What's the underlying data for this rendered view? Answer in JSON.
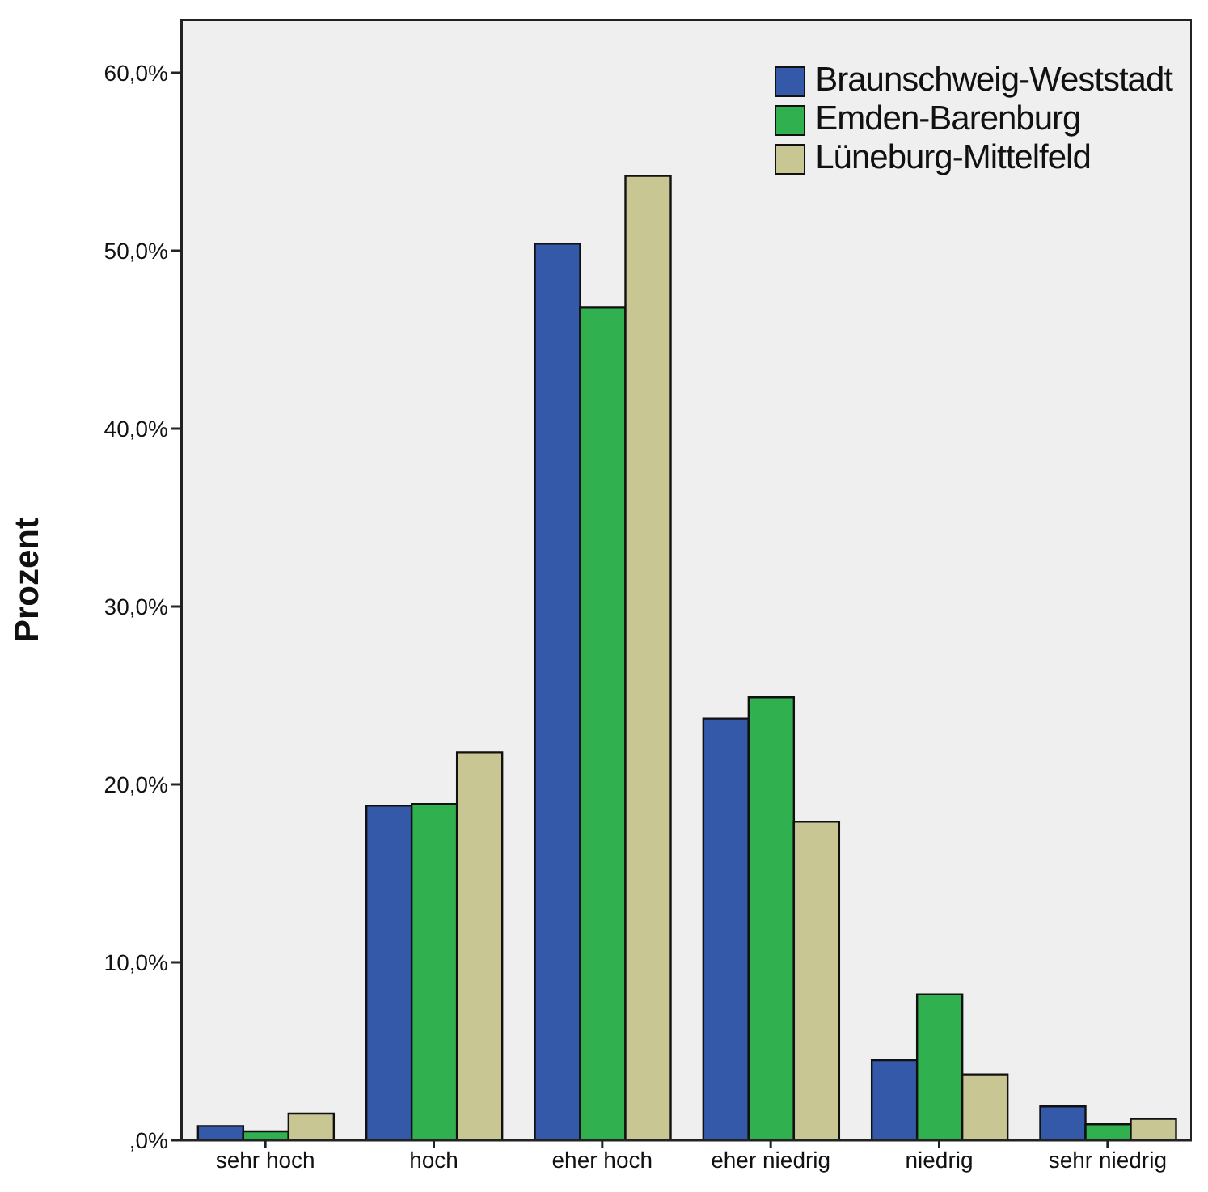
{
  "chart_data": {
    "type": "bar",
    "ylabel": "Prozent",
    "categories": [
      "sehr hoch",
      "hoch",
      "eher hoch",
      "eher niedrig",
      "niedrig",
      "sehr niedrig"
    ],
    "series": [
      {
        "name": "Braunschweig-Weststadt",
        "color": "#3359a8",
        "values": [
          0.8,
          18.8,
          50.4,
          23.7,
          4.5,
          1.9
        ]
      },
      {
        "name": "Emden-Barenburg",
        "color": "#30b04f",
        "values": [
          0.5,
          18.9,
          46.8,
          24.9,
          8.2,
          0.9
        ]
      },
      {
        "name": "Lüneburg-Mittelfeld",
        "color": "#c8c794",
        "values": [
          1.5,
          21.8,
          54.2,
          17.9,
          3.7,
          1.2
        ]
      }
    ],
    "ylim": [
      0,
      63
    ],
    "yticks": [
      {
        "value": 0,
        "label": ",0%"
      },
      {
        "value": 10,
        "label": "10,0%"
      },
      {
        "value": 20,
        "label": "20,0%"
      },
      {
        "value": 30,
        "label": "30,0%"
      },
      {
        "value": 40,
        "label": "40,0%"
      },
      {
        "value": 50,
        "label": "50,0%"
      },
      {
        "value": 60,
        "label": "60,0%"
      }
    ],
    "legend": "top right"
  }
}
